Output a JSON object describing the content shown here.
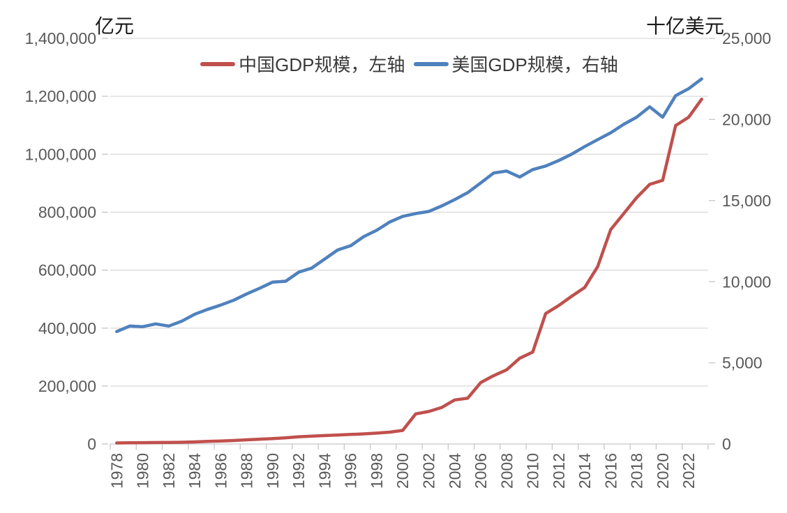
{
  "chart": {
    "left_axis_title": "亿元",
    "right_axis_title": "十亿美元"
  },
  "chart_data": {
    "type": "line",
    "title": "",
    "x": [
      1978,
      1979,
      1980,
      1981,
      1982,
      1983,
      1984,
      1985,
      1986,
      1987,
      1988,
      1989,
      1990,
      1991,
      1992,
      1993,
      1994,
      1995,
      1996,
      1997,
      1998,
      1999,
      2000,
      2001,
      2002,
      2003,
      2004,
      2005,
      2006,
      2007,
      2008,
      2009,
      2010,
      2011,
      2012,
      2013,
      2014,
      2015,
      2016,
      2017,
      2018,
      2019,
      2020,
      2021,
      2022,
      2023
    ],
    "x_tick_labels": [
      "1978",
      "1980",
      "1982",
      "1984",
      "1986",
      "1988",
      "1990",
      "1992",
      "1994",
      "1996",
      "1998",
      "2000",
      "2002",
      "2004",
      "2006",
      "2008",
      "2010",
      "2012",
      "2014",
      "2016",
      "2018",
      "2020",
      "2022"
    ],
    "series": [
      {
        "name": "中国GDP规模，左轴",
        "axis": "left",
        "color": "#C0504D",
        "values": [
          3700,
          4100,
          4600,
          5000,
          5400,
          6000,
          7300,
          9100,
          10400,
          12100,
          14500,
          16500,
          18500,
          21500,
          25000,
          27000,
          29000,
          31000,
          33000,
          35000,
          37500,
          41000,
          47000,
          104000,
          112000,
          126000,
          152000,
          158000,
          212000,
          236000,
          256000,
          296000,
          317000,
          450000,
          478000,
          510000,
          540000,
          612000,
          740000,
          795000,
          850000,
          896000,
          910000,
          1099000,
          1128000,
          1190000
        ]
      },
      {
        "name": "美国GDP规模，右轴",
        "axis": "right",
        "color": "#4F81BD",
        "values": [
          6930,
          7270,
          7230,
          7400,
          7270,
          7570,
          8000,
          8300,
          8560,
          8860,
          9250,
          9600,
          9980,
          10030,
          10590,
          10840,
          11400,
          11960,
          12220,
          12780,
          13170,
          13680,
          14030,
          14200,
          14330,
          14670,
          15060,
          15490,
          16090,
          16700,
          16820,
          16450,
          16910,
          17130,
          17470,
          17860,
          18330,
          18760,
          19180,
          19700,
          20140,
          20780,
          20140,
          21470,
          21900,
          22500
        ]
      }
    ],
    "left_axis": {
      "title": "亿元",
      "min": 0,
      "max": 1400000,
      "step": 200000,
      "tick_labels": [
        "0",
        "200,000",
        "400,000",
        "600,000",
        "800,000",
        "1,000,000",
        "1,200,000",
        "1,400,000"
      ]
    },
    "right_axis": {
      "title": "十亿美元",
      "min": 0,
      "max": 25000,
      "step": 5000,
      "tick_labels": [
        "0",
        "5,000",
        "10,000",
        "15,000",
        "20,000",
        "25,000"
      ]
    },
    "grid": true,
    "legend_position": "top",
    "colors": {
      "gridline": "#D9D9D9",
      "axis": "#C6C6C6",
      "tick_text": "#595959",
      "title_text": "#1A1A1A",
      "legend_text": "#3A3A3A"
    }
  }
}
